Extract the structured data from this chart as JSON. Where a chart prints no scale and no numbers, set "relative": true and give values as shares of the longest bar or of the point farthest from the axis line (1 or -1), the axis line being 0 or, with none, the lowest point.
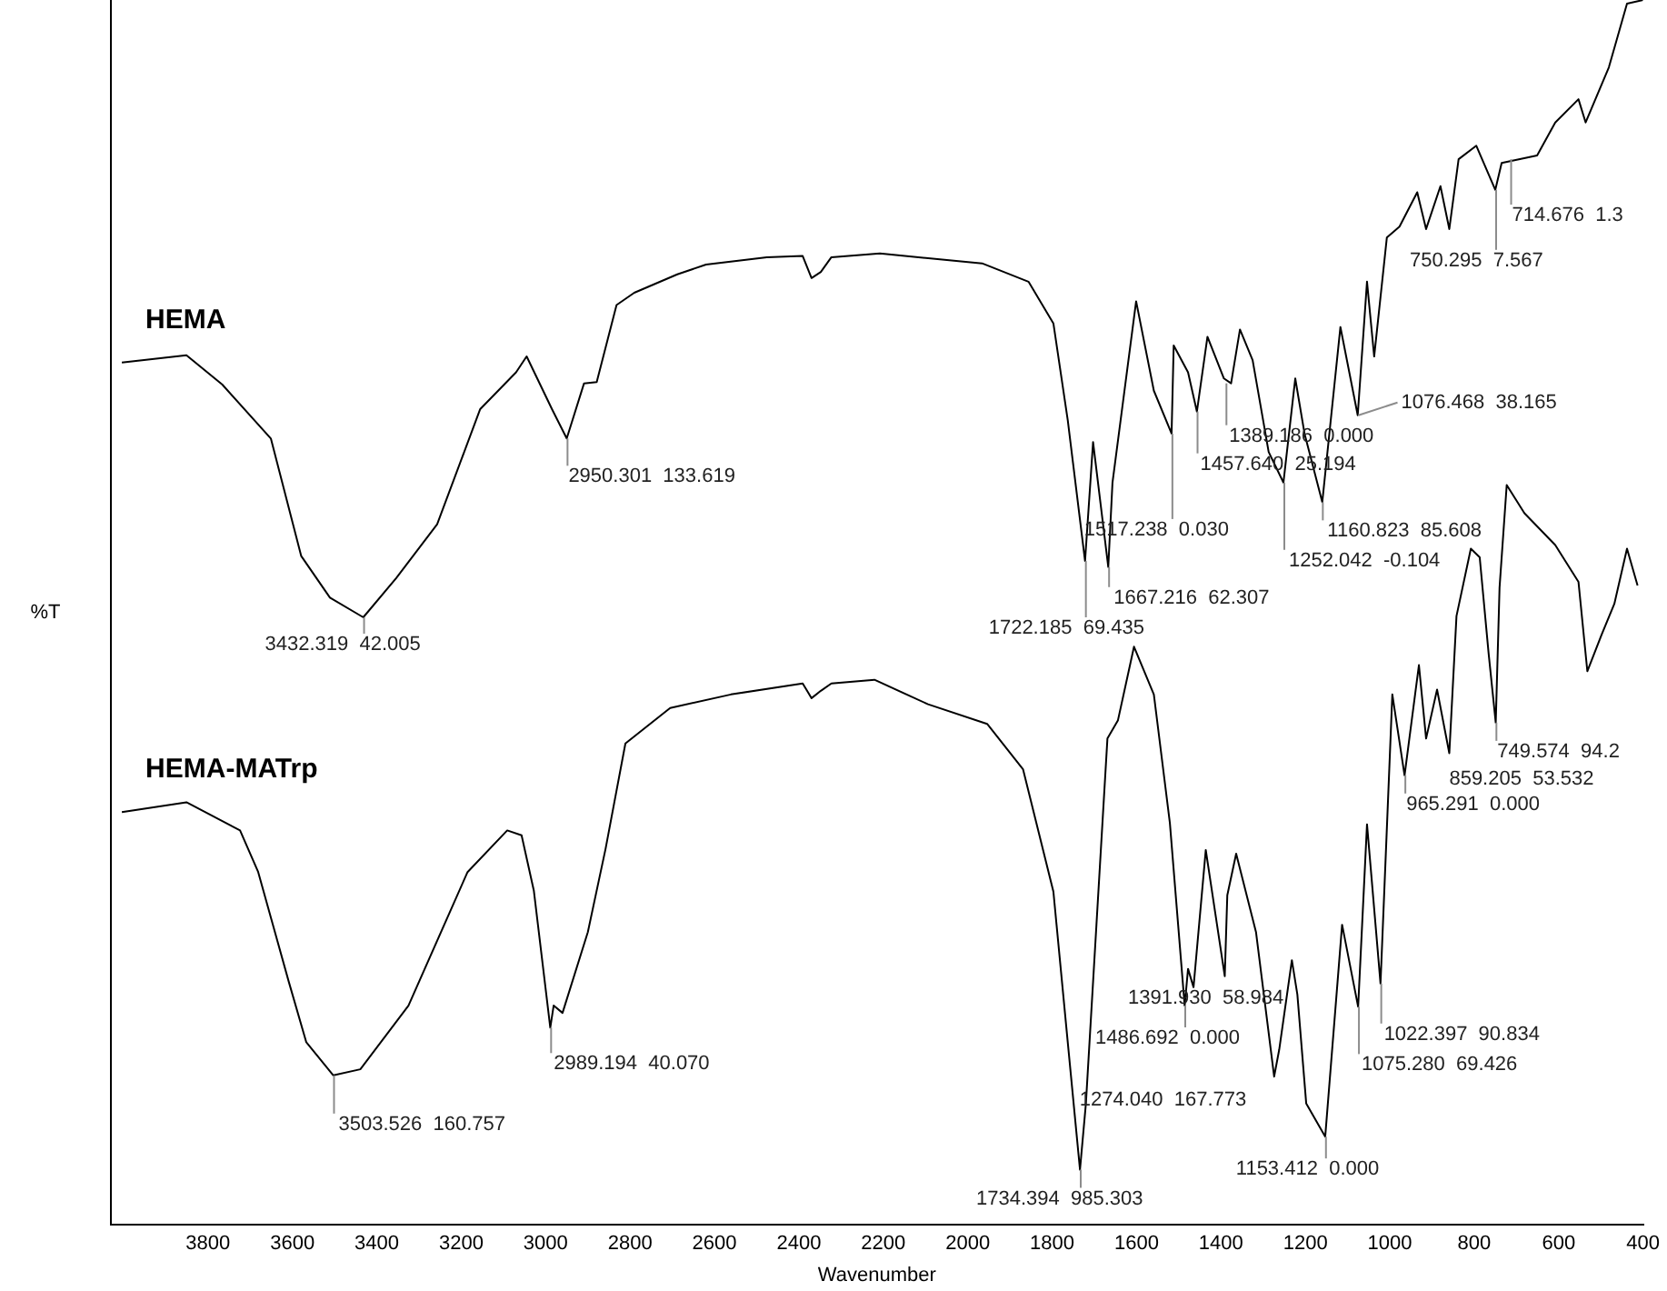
{
  "chart_data": {
    "type": "line",
    "xlabel": "Wavenumber",
    "ylabel": "%T",
    "relative": true,
    "xlim": [
      4030,
      400
    ],
    "xticks": [
      3800,
      3600,
      3400,
      3200,
      3000,
      2800,
      2600,
      2400,
      2200,
      2000,
      1800,
      1600,
      1400,
      1200,
      1000,
      800,
      600,
      400
    ],
    "series": [
      {
        "name": "HEMA",
        "color": "#000000",
        "x": [
          4004,
          3851,
          3766,
          3651,
          3579,
          3511,
          3432,
          3354,
          3257,
          3155,
          3070,
          3045,
          2985,
          2950,
          2909,
          2879,
          2832,
          2790,
          2688,
          2620,
          2476,
          2391,
          2370,
          2348,
          2323,
          2208,
          1966,
          1856,
          1797,
          1763,
          1722,
          1703,
          1667,
          1657,
          1601,
          1559,
          1517,
          1512,
          1478,
          1457,
          1432,
          1393,
          1376,
          1355,
          1325,
          1287,
          1252,
          1224,
          1202,
          1160,
          1117,
          1076,
          1054,
          1037,
          1007,
          977,
          935,
          914,
          880,
          859,
          837,
          795,
          750,
          735,
          651,
          608,
          553,
          536,
          481,
          438,
          400
        ],
        "values": [
          0.704,
          0.71,
          0.686,
          0.642,
          0.546,
          0.512,
          0.496,
          0.528,
          0.572,
          0.666,
          0.696,
          0.709,
          0.666,
          0.642,
          0.687,
          0.688,
          0.751,
          0.761,
          0.776,
          0.784,
          0.79,
          0.791,
          0.773,
          0.778,
          0.79,
          0.793,
          0.785,
          0.77,
          0.736,
          0.657,
          0.542,
          0.639,
          0.537,
          0.606,
          0.754,
          0.681,
          0.646,
          0.718,
          0.696,
          0.664,
          0.725,
          0.691,
          0.687,
          0.731,
          0.706,
          0.631,
          0.606,
          0.691,
          0.646,
          0.59,
          0.733,
          0.661,
          0.77,
          0.709,
          0.806,
          0.815,
          0.843,
          0.813,
          0.848,
          0.813,
          0.87,
          0.881,
          0.845,
          0.867,
          0.873,
          0.9,
          0.919,
          0.9,
          0.945,
          0.997,
          1
        ]
      },
      {
        "name": "HEMA-MATrp",
        "color": "#000000",
        "x": [
          4004,
          3851,
          3724,
          3681,
          3609,
          3567,
          3503,
          3439,
          3325,
          3185,
          3091,
          3057,
          3028,
          2989,
          2981,
          2960,
          2900,
          2858,
          2811,
          2705,
          2561,
          2391,
          2370,
          2348,
          2323,
          2221,
          2094,
          1954,
          1869,
          1797,
          1763,
          1734,
          1720,
          1669,
          1644,
          1606,
          1559,
          1521,
          1486,
          1478,
          1465,
          1436,
          1391,
          1385,
          1364,
          1317,
          1274,
          1262,
          1232,
          1219,
          1198,
          1153,
          1113,
          1075,
          1054,
          1022,
          994,
          965,
          931,
          914,
          888,
          859,
          842,
          808,
          787,
          766,
          749,
          740,
          723,
          681,
          608,
          553,
          532,
          498,
          468,
          438,
          413
        ],
        "values": [
          0.337,
          0.345,
          0.322,
          0.288,
          0.199,
          0.149,
          0.122,
          0.127,
          0.179,
          0.288,
          0.322,
          0.318,
          0.273,
          0.161,
          0.179,
          0.173,
          0.239,
          0.307,
          0.393,
          0.422,
          0.433,
          0.442,
          0.43,
          0.436,
          0.442,
          0.445,
          0.425,
          0.409,
          0.372,
          0.272,
          0.149,
          0.045,
          0.099,
          0.397,
          0.412,
          0.472,
          0.433,
          0.328,
          0.179,
          0.209,
          0.194,
          0.306,
          0.203,
          0.269,
          0.303,
          0.239,
          0.121,
          0.143,
          0.216,
          0.188,
          0.099,
          0.072,
          0.245,
          0.178,
          0.327,
          0.197,
          0.433,
          0.367,
          0.457,
          0.397,
          0.437,
          0.385,
          0.497,
          0.552,
          0.545,
          0.467,
          0.41,
          0.52,
          0.604,
          0.581,
          0.555,
          0.525,
          0.452,
          0.482,
          0.507,
          0.552,
          0.522
        ]
      }
    ],
    "annotations": [
      {
        "text": "3432.319  42.005",
        "x": 3432.319,
        "y": 0.496
      },
      {
        "text": "2950.301  133.619",
        "x": 2950.301,
        "y": 0.642
      },
      {
        "text": "1722.185  69.435",
        "x": 1722.185,
        "y": 0.542
      },
      {
        "text": "1667.216  62.307",
        "x": 1667.216,
        "y": 0.537
      },
      {
        "text": "1517.238  0.030",
        "x": 1517.238,
        "y": 0.646
      },
      {
        "text": "1457.640  25.194",
        "x": 1457.64,
        "y": 0.664
      },
      {
        "text": "1389.186  0.000",
        "x": 1389.186,
        "y": 0.687
      },
      {
        "text": "1252.042  -0.104",
        "x": 1252.042,
        "y": 0.606
      },
      {
        "text": "1160.823  85.608",
        "x": 1160.823,
        "y": 0.59
      },
      {
        "text": "1076.468  38.165",
        "x": 1076.468,
        "y": 0.661
      },
      {
        "text": "750.295  7.567",
        "x": 750.295,
        "y": 0.845
      },
      {
        "text": "714.676  1.3",
        "x": 714.676,
        "y": 0.87
      },
      {
        "text": "3503.526  160.757",
        "x": 3503.526,
        "y": 0.122
      },
      {
        "text": "2989.194  40.070",
        "x": 2989.194,
        "y": 0.161
      },
      {
        "text": "1734.394  985.303",
        "x": 1734.394,
        "y": 0.045
      },
      {
        "text": "1486.692  0.000",
        "x": 1486.692,
        "y": 0.179
      },
      {
        "text": "1391.930  58.984",
        "x": 1391.93,
        "y": 0.203
      },
      {
        "text": "1274.040  167.773",
        "x": 1274.04,
        "y": 0.121
      },
      {
        "text": "1153.412  0.000",
        "x": 1153.412,
        "y": 0.072
      },
      {
        "text": "1075.280  69.426",
        "x": 1075.28,
        "y": 0.178
      },
      {
        "text": "1022.397  90.834",
        "x": 1022.397,
        "y": 0.197
      },
      {
        "text": "965.291  0.000",
        "x": 965.291,
        "y": 0.367
      },
      {
        "text": "859.205  53.532",
        "x": 859.205,
        "y": 0.385
      },
      {
        "text": "749.574  94.2",
        "x": 749.574,
        "y": 0.41
      }
    ]
  }
}
